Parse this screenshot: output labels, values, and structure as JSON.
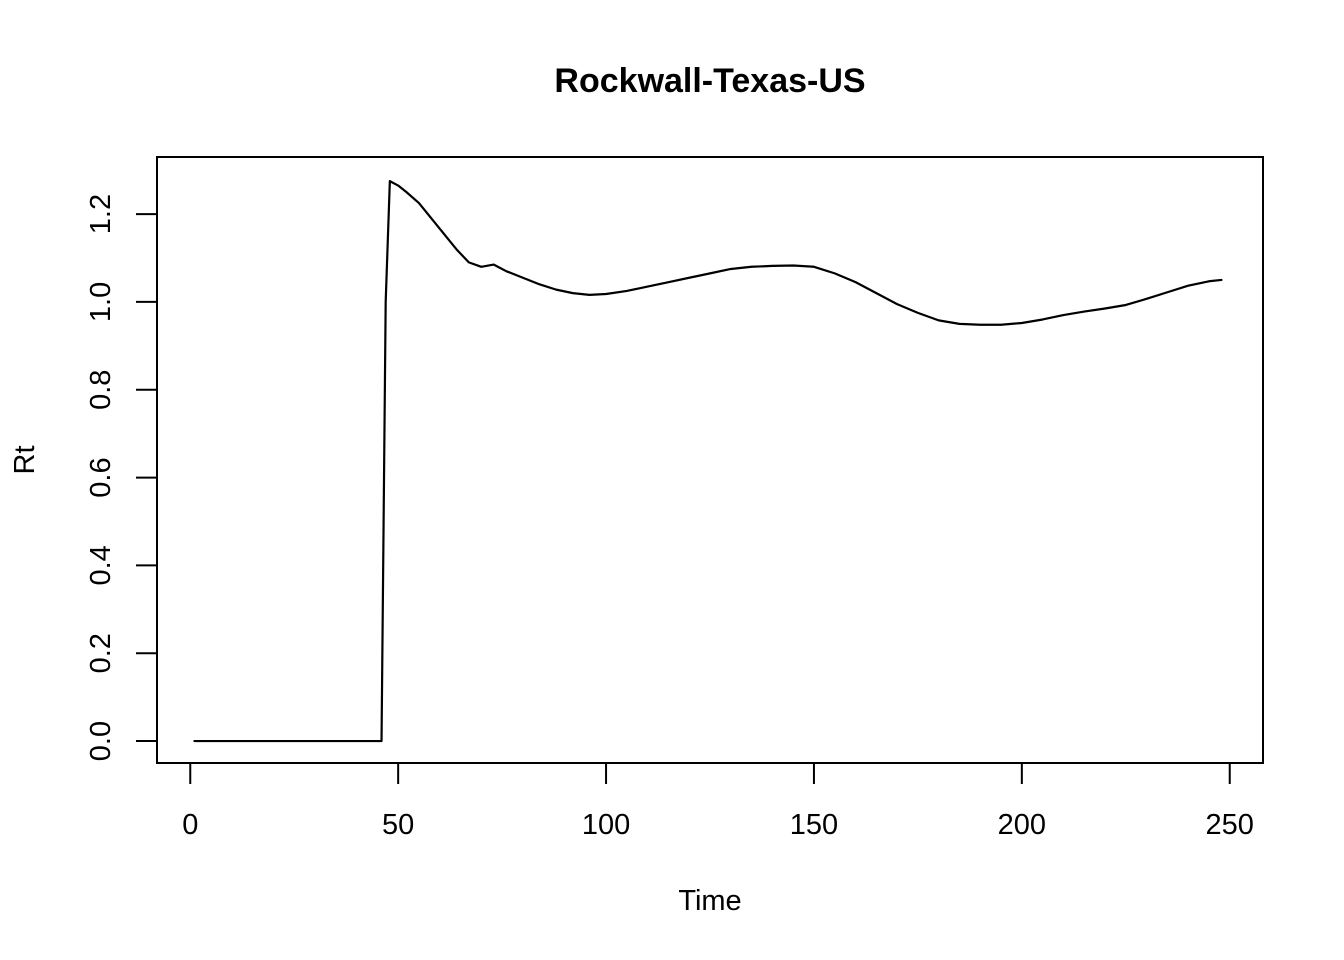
{
  "chart_data": {
    "type": "line",
    "title": "Rockwall-Texas-US",
    "xlabel": "Time",
    "ylabel": "Rt",
    "xlim": [
      -8,
      258
    ],
    "ylim": [
      -0.05,
      1.33
    ],
    "xticks": [
      0,
      50,
      100,
      150,
      200,
      250
    ],
    "yticks": [
      0.0,
      0.2,
      0.4,
      0.6,
      0.8,
      1.0,
      1.2
    ],
    "xtick_labels": [
      "0",
      "50",
      "100",
      "150",
      "200",
      "250"
    ],
    "ytick_labels": [
      "0.0",
      "0.2",
      "0.4",
      "0.6",
      "0.8",
      "1.0",
      "1.2"
    ],
    "grid": false,
    "legend": "none",
    "line_color": "#000000",
    "series": [
      {
        "x": [
          1,
          46,
          46.5,
          47,
          48,
          50,
          52,
          55,
          58,
          61,
          64,
          67,
          70,
          73,
          76,
          80,
          84,
          88,
          92,
          96,
          100,
          105,
          110,
          115,
          120,
          125,
          130,
          135,
          140,
          145,
          150,
          155,
          160,
          165,
          170,
          175,
          180,
          185,
          190,
          195,
          200,
          205,
          210,
          215,
          220,
          225,
          230,
          235,
          240,
          245,
          248
        ],
        "y": [
          0.0,
          0.0,
          0.5,
          1.0,
          1.275,
          1.265,
          1.25,
          1.225,
          1.19,
          1.155,
          1.12,
          1.09,
          1.08,
          1.085,
          1.07,
          1.055,
          1.04,
          1.028,
          1.02,
          1.016,
          1.018,
          1.025,
          1.035,
          1.045,
          1.055,
          1.065,
          1.075,
          1.08,
          1.082,
          1.083,
          1.08,
          1.065,
          1.045,
          1.02,
          0.995,
          0.975,
          0.958,
          0.95,
          0.948,
          0.948,
          0.952,
          0.96,
          0.97,
          0.978,
          0.985,
          0.993,
          1.007,
          1.022,
          1.037,
          1.047,
          1.05
        ]
      }
    ]
  }
}
